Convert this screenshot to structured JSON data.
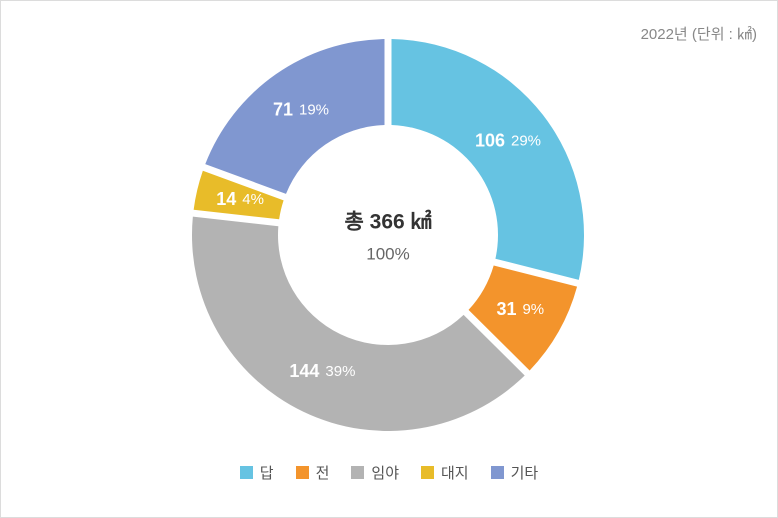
{
  "header": {
    "period_label": "2022년 (단위 : ㎢)"
  },
  "center": {
    "total_label": "총 366 ㎢",
    "percent_label": "100%"
  },
  "chart_data": {
    "type": "pie",
    "subtype": "donut",
    "unit": "㎢",
    "total_value": 366,
    "center_label": "총 366 ㎢",
    "center_percent": "100%",
    "start_angle_deg": 0,
    "direction": "clockwise",
    "inner_radius_ratio": 0.56,
    "legend_position": "bottom",
    "segments": [
      {
        "label": "답",
        "value": 106,
        "percent": "29%",
        "color": "#66C3E2"
      },
      {
        "label": "전",
        "value": 31,
        "percent": "9%",
        "color": "#F3942C"
      },
      {
        "label": "임야",
        "value": 144,
        "percent": "39%",
        "color": "#B3B3B3"
      },
      {
        "label": "대지",
        "value": 14,
        "percent": "4%",
        "color": "#E8BC29"
      },
      {
        "label": "기타",
        "value": 71,
        "percent": "19%",
        "color": "#8097D0"
      }
    ]
  }
}
